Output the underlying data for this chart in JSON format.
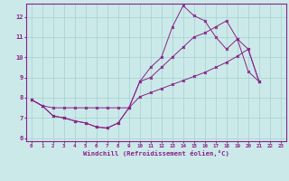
{
  "xlabel": "Windchill (Refroidissement éolien,°C)",
  "bg_color": "#cce9e9",
  "grid_color": "#aad4d4",
  "line_color": "#882288",
  "xlim_min": -0.5,
  "xlim_max": 23.5,
  "ylim_min": 5.85,
  "ylim_max": 12.65,
  "yticks": [
    6,
    7,
    8,
    9,
    10,
    11,
    12
  ],
  "xticks": [
    0,
    1,
    2,
    3,
    4,
    5,
    6,
    7,
    8,
    9,
    10,
    11,
    12,
    13,
    14,
    15,
    16,
    17,
    18,
    19,
    20,
    21,
    22,
    23
  ],
  "line1_x": [
    0,
    1,
    2,
    3,
    4,
    5,
    6,
    7,
    8,
    9,
    10,
    11,
    12,
    13,
    14,
    15,
    16,
    17,
    18,
    19,
    20,
    21,
    22,
    23
  ],
  "line1_y": [
    7.9,
    7.6,
    7.1,
    7.0,
    6.85,
    6.75,
    6.55,
    6.5,
    6.75,
    7.5,
    8.8,
    9.5,
    10.0,
    11.5,
    12.55,
    12.05,
    11.8,
    11.0,
    10.4,
    10.9,
    9.3,
    8.8,
    null,
    null
  ],
  "line2_x": [
    0,
    1,
    2,
    3,
    4,
    5,
    6,
    7,
    8,
    9,
    10,
    11,
    12,
    13,
    14,
    15,
    16,
    17,
    18,
    19,
    20,
    21,
    22,
    23
  ],
  "line2_y": [
    7.9,
    7.6,
    7.5,
    7.5,
    7.5,
    7.5,
    7.5,
    7.5,
    7.5,
    7.5,
    8.8,
    9.0,
    9.5,
    10.0,
    10.5,
    11.0,
    11.2,
    11.5,
    11.8,
    10.9,
    10.4,
    8.8,
    null,
    null
  ],
  "line3_x": [
    0,
    1,
    2,
    3,
    4,
    5,
    6,
    7,
    8,
    9,
    10,
    11,
    12,
    13,
    14,
    15,
    16,
    17,
    18,
    19,
    20,
    21,
    22,
    23
  ],
  "line3_y": [
    7.9,
    7.6,
    7.1,
    7.0,
    6.85,
    6.75,
    6.55,
    6.5,
    6.75,
    7.5,
    8.05,
    8.25,
    8.45,
    8.65,
    8.85,
    9.05,
    9.25,
    9.5,
    9.75,
    10.05,
    10.4,
    8.8,
    null,
    null
  ]
}
